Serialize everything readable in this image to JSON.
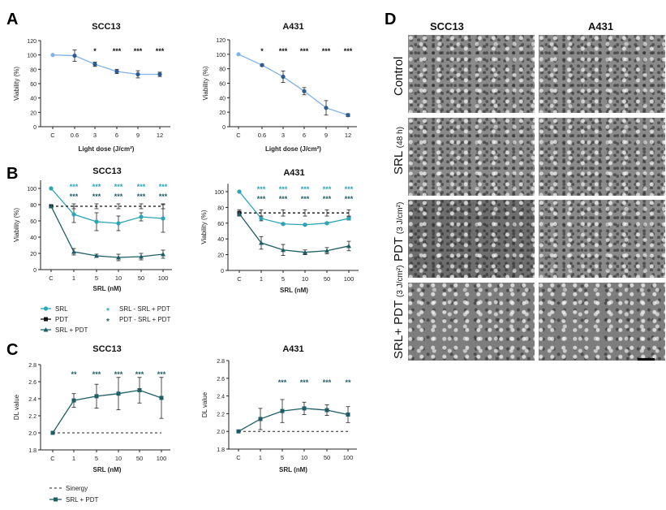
{
  "panel_labels": {
    "A": "A",
    "B": "B",
    "C": "C",
    "D": "D"
  },
  "colors": {
    "A_line": "#7fb2e8",
    "A_marker": "#2e5b8f",
    "SRL": "#2aa5b5",
    "PDT": "#111111",
    "SRL_PDT": "#1f5d66",
    "sig_teal": "#2aa5b5",
    "sig_dark": "#1f5d66"
  },
  "chart_data": [
    {
      "id": "A_SCC13",
      "type": "line",
      "title": "SCC13",
      "xlabel": "Light dose (J/cm²)",
      "ylabel": "Viability (%)",
      "ylim": [
        0,
        120
      ],
      "yticks": [
        0,
        20,
        40,
        60,
        80,
        100,
        120
      ],
      "categories": [
        "C",
        "0.6",
        "3",
        "6",
        "9",
        "12"
      ],
      "series": [
        {
          "values": [
            100,
            99,
            87,
            77,
            73,
            73
          ],
          "errors": [
            0,
            8,
            3,
            3,
            5,
            3
          ]
        }
      ],
      "significance": [
        [
          "",
          "",
          "*",
          "***",
          "***",
          "***"
        ]
      ]
    },
    {
      "id": "A_A431",
      "type": "line",
      "title": "A431",
      "xlabel": "Light dose (J/cm²)",
      "ylabel": "Viability (%)",
      "ylim": [
        0,
        120
      ],
      "yticks": [
        0,
        20,
        40,
        60,
        80,
        100,
        120
      ],
      "categories": [
        "C",
        "0.6",
        "3",
        "6",
        "9",
        "12"
      ],
      "series": [
        {
          "values": [
            100,
            85,
            69,
            49,
            26,
            16
          ],
          "errors": [
            0,
            1.5,
            8,
            5,
            10,
            2
          ]
        }
      ],
      "significance": [
        [
          "",
          "*",
          "***",
          "***",
          "***",
          "***"
        ]
      ]
    },
    {
      "id": "B_SCC13",
      "type": "line",
      "title": "SCC13",
      "xlabel": "SRL  (nM)",
      "ylabel": "Viability (%)",
      "ylim": [
        0,
        110
      ],
      "yticks": [
        0,
        20,
        40,
        60,
        80,
        100
      ],
      "categories": [
        "C",
        "1",
        "5",
        "10",
        "50",
        "100"
      ],
      "series": [
        {
          "name": "SRL",
          "values": [
            100,
            68,
            59,
            57,
            65,
            63
          ],
          "errors": [
            0,
            10,
            11,
            9,
            5,
            17
          ]
        },
        {
          "name": "PDT",
          "values": [
            78,
            78,
            78,
            78,
            78,
            78
          ],
          "errors": [
            2,
            3,
            3,
            3,
            3,
            3
          ],
          "dashed": true
        },
        {
          "name": "SRL + PDT",
          "values": [
            78,
            22,
            17,
            15,
            16,
            19
          ],
          "errors": [
            0,
            4,
            2,
            4,
            4,
            5
          ]
        }
      ],
      "significance": [
        [
          "",
          "***",
          "***",
          "***",
          "***",
          "***"
        ],
        [
          "",
          "***",
          "***",
          "***",
          "***",
          "***"
        ]
      ]
    },
    {
      "id": "B_A431",
      "type": "line",
      "title": "A431",
      "xlabel": "SRL  (nM)",
      "ylabel": "Viability (%)",
      "ylim": [
        0,
        110
      ],
      "yticks": [
        0,
        20,
        40,
        60,
        80,
        100
      ],
      "categories": [
        "C",
        "1",
        "5",
        "10",
        "50",
        "100"
      ],
      "series": [
        {
          "name": "SRL",
          "values": [
            100,
            66,
            59,
            58,
            60,
            66
          ],
          "errors": [
            0,
            3,
            1,
            1,
            1,
            2
          ]
        },
        {
          "name": "PDT",
          "values": [
            73,
            73,
            73,
            73,
            73,
            73
          ],
          "errors": [
            4,
            4,
            4,
            4,
            4,
            4
          ],
          "dashed": true
        },
        {
          "name": "SRL + PDT",
          "values": [
            72,
            35,
            26,
            23,
            25,
            31
          ],
          "errors": [
            0,
            8,
            7,
            3,
            4,
            6
          ]
        }
      ],
      "significance": [
        [
          "",
          "***",
          "***",
          "***",
          "***",
          "***"
        ],
        [
          "",
          "***",
          "***",
          "***",
          "***",
          "***"
        ]
      ]
    },
    {
      "id": "C_SCC13",
      "type": "line",
      "title": "SCC13",
      "xlabel": "SRL  (nM)",
      "ylabel": "DL value",
      "ylim": [
        1.8,
        2.8
      ],
      "yticks": [
        "1.8",
        "2.0",
        "2.2",
        "2.4",
        "2.6",
        "2.8"
      ],
      "categories": [
        "C",
        "1",
        "5",
        "10",
        "50",
        "100"
      ],
      "synergy": 2.0,
      "series": [
        {
          "name": "SRL + PDT",
          "values": [
            2.0,
            2.38,
            2.43,
            2.46,
            2.5,
            2.41
          ],
          "errors": [
            0,
            0.08,
            0.14,
            0.19,
            0.15,
            0.24
          ]
        }
      ],
      "significance": [
        [
          "",
          "**",
          "***",
          "***",
          "***",
          "***"
        ]
      ]
    },
    {
      "id": "C_A431",
      "type": "line",
      "title": "A431",
      "xlabel": "SRL  (nM)",
      "ylabel": "DL value",
      "ylim": [
        1.8,
        2.8
      ],
      "yticks": [
        "1.8",
        "2.0",
        "2.2",
        "2.4",
        "2.6",
        "2.8"
      ],
      "categories": [
        "C",
        "1",
        "5",
        "10",
        "50",
        "100"
      ],
      "synergy": 2.0,
      "series": [
        {
          "name": "SRL + PDT",
          "values": [
            2.0,
            2.14,
            2.23,
            2.26,
            2.24,
            2.19
          ],
          "errors": [
            0,
            0.12,
            0.13,
            0.07,
            0.06,
            0.09
          ]
        }
      ],
      "significance": [
        [
          "",
          "",
          "***",
          "***",
          "***",
          "**"
        ]
      ]
    }
  ],
  "legend_B": {
    "srl": "SRL",
    "pdt": "PDT",
    "srl_pdt": "SRL + PDT",
    "star_srl": "SRL - SRL + PDT",
    "star_pdt": "PDT - SRL + PDT"
  },
  "legend_C": {
    "synergy": "Sinergy",
    "srl_pdt": "SRL + PDT"
  },
  "panel_D": {
    "columns": [
      "SCC13",
      "A431"
    ],
    "rows": [
      {
        "label": "Control",
        "sub": ""
      },
      {
        "label": "SRL",
        "sub": "(48 h)"
      },
      {
        "label": "PDT",
        "sub": "(3 J/cm²)"
      },
      {
        "label": "SRL+ PDT",
        "sub": "(3 J/cm²)"
      }
    ]
  }
}
